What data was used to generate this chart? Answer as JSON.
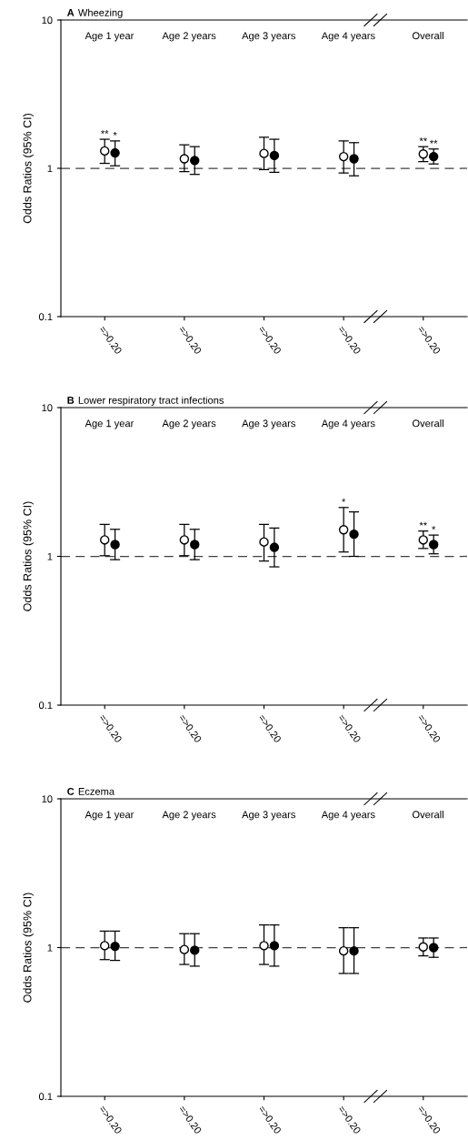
{
  "chart_data": [
    {
      "type": "scatter",
      "title": "A Wheezing",
      "ylabel": "Odds Ratios (95% CI)",
      "categories": [
        "=>0.20",
        "=>0.20",
        "=>0.20",
        "=>0.20",
        "=>0.20"
      ],
      "log": "y",
      "ylim": [
        0.1,
        10
      ],
      "yticks": [
        0.1,
        1,
        10
      ],
      "marker": "circle",
      "annotations": [
        "Age 1 year",
        "Age 2 years",
        "Age 3 years",
        "Age 4 years",
        "Overall"
      ],
      "ref_lines": [
        {
          "axis": "y",
          "value": 1,
          "line_style": "dashed",
          "color": "#404040"
        }
      ],
      "series": [
        {
          "color": "#ffffff",
          "values": [
            1.31,
            1.16,
            1.26,
            1.2,
            1.25
          ],
          "errors": [
            [
              1.08,
              1.57
            ],
            [
              0.95,
              1.44
            ],
            [
              0.98,
              1.62
            ],
            [
              0.93,
              1.53
            ],
            [
              1.11,
              1.4
            ]
          ],
          "value_labels": [
            "**",
            null,
            null,
            null,
            "**"
          ]
        },
        {
          "color": "#000000",
          "values": [
            1.27,
            1.13,
            1.22,
            1.16,
            1.2
          ],
          "errors": [
            [
              1.04,
              1.53
            ],
            [
              0.91,
              1.4
            ],
            [
              0.94,
              1.57
            ],
            [
              0.89,
              1.49
            ],
            [
              1.07,
              1.35
            ]
          ],
          "value_labels": [
            "*",
            null,
            null,
            null,
            "**"
          ]
        }
      ]
    },
    {
      "type": "scatter",
      "title": "B Lower respiratory tract infections",
      "ylabel": "Odds Ratios (95% CI)",
      "categories": [
        "=>0.20",
        "=>0.20",
        "=>0.20",
        "=>0.20",
        "=>0.20"
      ],
      "log": "y",
      "ylim": [
        0.1,
        10
      ],
      "yticks": [
        0.1,
        1,
        10
      ],
      "marker": "circle",
      "annotations": [
        "Age 1 year",
        "Age 2 years",
        "Age 3 years",
        "Age 4 years",
        "Overall"
      ],
      "ref_lines": [
        {
          "axis": "y",
          "value": 1,
          "line_style": "dashed",
          "color": "#404040"
        }
      ],
      "series": [
        {
          "color": "#ffffff",
          "values": [
            1.29,
            1.29,
            1.25,
            1.51,
            1.29
          ],
          "errors": [
            [
              1.01,
              1.64
            ],
            [
              1.01,
              1.64
            ],
            [
              0.93,
              1.64
            ],
            [
              1.07,
              2.13
            ],
            [
              1.13,
              1.48
            ]
          ],
          "value_labels": [
            null,
            null,
            null,
            "*",
            "**"
          ]
        },
        {
          "color": "#000000",
          "values": [
            1.2,
            1.2,
            1.15,
            1.41,
            1.2
          ],
          "errors": [
            [
              0.95,
              1.52
            ],
            [
              0.95,
              1.52
            ],
            [
              0.85,
              1.55
            ],
            [
              1.0,
              1.99
            ],
            [
              1.04,
              1.39
            ]
          ],
          "value_labels": [
            null,
            null,
            null,
            null,
            "*"
          ]
        }
      ]
    },
    {
      "type": "scatter",
      "title": "C Eczema",
      "ylabel": "Odds Ratios (95% CI)",
      "categories": [
        "=>0.20",
        "=>0.20",
        "=>0.20",
        "=>0.20",
        "=>0.20"
      ],
      "log": "y",
      "ylim": [
        0.1,
        10
      ],
      "yticks": [
        0.1,
        1,
        10
      ],
      "marker": "circle",
      "annotations": [
        "Age 1 year",
        "Age 2 years",
        "Age 3 years",
        "Age 4 years",
        "Overall"
      ],
      "ref_lines": [
        {
          "axis": "y",
          "value": 1,
          "line_style": "dashed",
          "color": "#404040"
        }
      ],
      "series": [
        {
          "color": "#ffffff",
          "values": [
            1.03,
            0.97,
            1.03,
            0.95,
            1.01
          ],
          "errors": [
            [
              0.83,
              1.29
            ],
            [
              0.77,
              1.24
            ],
            [
              0.77,
              1.42
            ],
            [
              0.67,
              1.36
            ],
            [
              0.88,
              1.16
            ]
          ]
        },
        {
          "color": "#000000",
          "values": [
            1.02,
            0.96,
            1.03,
            0.95,
            1.0
          ],
          "errors": [
            [
              0.82,
              1.29
            ],
            [
              0.75,
              1.24
            ],
            [
              0.75,
              1.42
            ],
            [
              0.67,
              1.36
            ],
            [
              0.86,
              1.16
            ]
          ]
        }
      ]
    }
  ]
}
